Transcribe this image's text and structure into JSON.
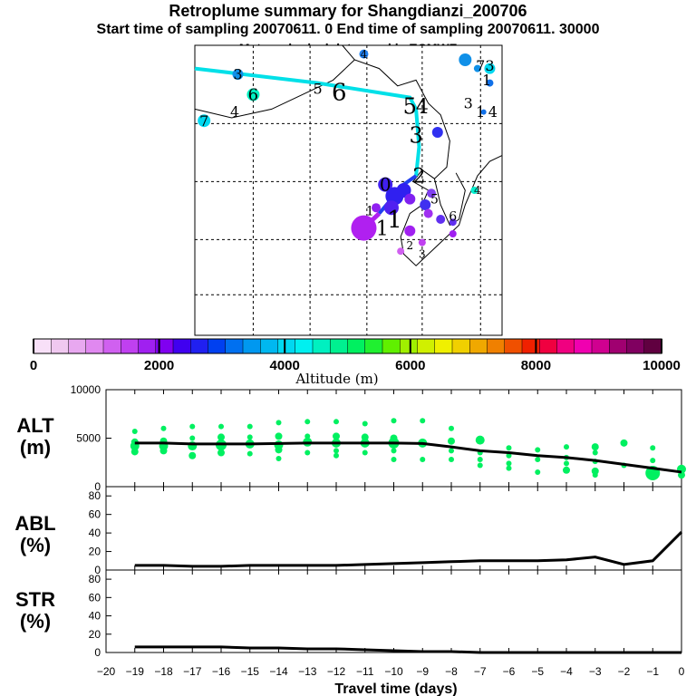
{
  "title": "Retroplume summary for Shangdianzi_200706",
  "subtitle": "Start time of sampling 20070611.    0     End time of sampling 20070611. 30000",
  "met_line": "Meteorological data used is ECMWF",
  "colorbar": {
    "label": "Altitude (m)",
    "ticks": [
      "0",
      "2000",
      "4000",
      "6000",
      "8000",
      "10000"
    ],
    "tick_values": [
      0,
      2000,
      4000,
      6000,
      8000,
      10000
    ],
    "colors": [
      "#f8e0f8",
      "#f0c8f0",
      "#e8a8f0",
      "#e088f0",
      "#d060f0",
      "#c040f0",
      "#a020f0",
      "#8000f0",
      "#4000f0",
      "#2020f0",
      "#0040f0",
      "#0070f0",
      "#0098f0",
      "#00b8f0",
      "#00d8f0",
      "#00f0f0",
      "#00f0c0",
      "#00f090",
      "#00f060",
      "#20f030",
      "#60f000",
      "#a0f000",
      "#d0f000",
      "#f0f000",
      "#f0d000",
      "#f0a800",
      "#f08000",
      "#f05000",
      "#f02000",
      "#f00040",
      "#f00080",
      "#f000b0",
      "#d00090",
      "#a00070",
      "#800060",
      "#600040"
    ]
  },
  "map": {
    "track_color": "#00e0e8",
    "labels": [
      {
        "text": "4",
        "mx": 0.55,
        "my": 0.03,
        "size": 12,
        "color": "#2080f0"
      },
      {
        "text": "5",
        "mx": 0.4,
        "my": 0.15,
        "size": 16,
        "color": "#00d0e8"
      },
      {
        "text": "6",
        "mx": 0.47,
        "my": 0.16,
        "size": 26,
        "color": "#00c8d8"
      },
      {
        "text": "5",
        "mx": 0.7,
        "my": 0.21,
        "size": 24,
        "color": "#1090e8"
      },
      {
        "text": "4",
        "mx": 0.74,
        "my": 0.21,
        "size": 22,
        "color": "#1090e8"
      },
      {
        "text": "3",
        "mx": 0.72,
        "my": 0.31,
        "size": 24,
        "color": "#1090e8"
      },
      {
        "text": "2",
        "mx": 0.73,
        "my": 0.45,
        "size": 22,
        "color": "#3040f0"
      },
      {
        "text": "0",
        "mx": 0.62,
        "my": 0.48,
        "size": 20,
        "color": "#6020f0"
      },
      {
        "text": "1",
        "mx": 0.65,
        "my": 0.6,
        "size": 26,
        "color": "#a020f0"
      },
      {
        "text": "1",
        "mx": 0.61,
        "my": 0.63,
        "size": 22,
        "color": "#b030f0"
      },
      {
        "text": "1",
        "mx": 0.57,
        "my": 0.57,
        "size": 14,
        "color": "#b030f0"
      },
      {
        "text": "5",
        "mx": 0.78,
        "my": 0.53,
        "size": 14,
        "color": "#6030f0"
      },
      {
        "text": "6",
        "mx": 0.84,
        "my": 0.59,
        "size": 14,
        "color": "#6030f0"
      },
      {
        "text": "2",
        "mx": 0.7,
        "my": 0.69,
        "size": 12,
        "color": "#a020f0"
      },
      {
        "text": "3",
        "mx": 0.74,
        "my": 0.72,
        "size": 12,
        "color": "#a020f0"
      },
      {
        "text": "4",
        "mx": 0.92,
        "my": 0.5,
        "size": 12,
        "color": "#00f0f0"
      },
      {
        "text": "7",
        "mx": 0.93,
        "my": 0.07,
        "size": 16,
        "color": "#1090e8"
      },
      {
        "text": "3",
        "mx": 0.96,
        "my": 0.07,
        "size": 16,
        "color": "#00d8f0"
      },
      {
        "text": "1",
        "mx": 0.95,
        "my": 0.12,
        "size": 16,
        "color": "#1070e8"
      },
      {
        "text": "3",
        "mx": 0.89,
        "my": 0.2,
        "size": 16,
        "color": "#1070e8"
      },
      {
        "text": "1",
        "mx": 0.93,
        "my": 0.23,
        "size": 16,
        "color": "#1070e8"
      },
      {
        "text": "4",
        "mx": 0.97,
        "my": 0.23,
        "size": 16,
        "color": "#1070e8"
      },
      {
        "text": "3",
        "mx": 0.14,
        "my": 0.1,
        "size": 16,
        "color": "#1090e8"
      },
      {
        "text": "6",
        "mx": 0.19,
        "my": 0.17,
        "size": 18,
        "color": "#00f0c0"
      },
      {
        "text": "4",
        "mx": 0.13,
        "my": 0.23,
        "size": 16,
        "color": "#00c8d8"
      },
      {
        "text": "7",
        "mx": 0.03,
        "my": 0.26,
        "size": 16,
        "color": "#00d8f0"
      }
    ],
    "dots": [
      {
        "mx": 0.55,
        "my": 0.03,
        "r": 5,
        "color": "#2080f0"
      },
      {
        "mx": 0.88,
        "my": 0.05,
        "r": 7,
        "color": "#1090e8"
      },
      {
        "mx": 0.92,
        "my": 0.08,
        "r": 4,
        "color": "#1090e8"
      },
      {
        "mx": 0.96,
        "my": 0.08,
        "r": 6,
        "color": "#00d8f0"
      },
      {
        "mx": 0.96,
        "my": 0.13,
        "r": 4,
        "color": "#1070e8"
      },
      {
        "mx": 0.94,
        "my": 0.23,
        "r": 3,
        "color": "#1070e8"
      },
      {
        "mx": 0.14,
        "my": 0.1,
        "r": 6,
        "color": "#1090e8"
      },
      {
        "mx": 0.19,
        "my": 0.17,
        "r": 7,
        "color": "#00f0c0"
      },
      {
        "mx": 0.03,
        "my": 0.26,
        "r": 7,
        "color": "#00d8f0"
      },
      {
        "mx": 0.79,
        "my": 0.3,
        "r": 6,
        "color": "#3030f0"
      },
      {
        "mx": 0.62,
        "my": 0.48,
        "r": 8,
        "color": "#4020f0"
      },
      {
        "mx": 0.65,
        "my": 0.52,
        "r": 10,
        "color": "#3020f0"
      },
      {
        "mx": 0.68,
        "my": 0.5,
        "r": 8,
        "color": "#3020f0"
      },
      {
        "mx": 0.64,
        "my": 0.56,
        "r": 8,
        "color": "#5020f0"
      },
      {
        "mx": 0.7,
        "my": 0.53,
        "r": 6,
        "color": "#8020f0"
      },
      {
        "mx": 0.75,
        "my": 0.55,
        "r": 6,
        "color": "#4030f0"
      },
      {
        "mx": 0.77,
        "my": 0.51,
        "r": 5,
        "color": "#8040f0"
      },
      {
        "mx": 0.76,
        "my": 0.58,
        "r": 5,
        "color": "#a030f0"
      },
      {
        "mx": 0.8,
        "my": 0.6,
        "r": 5,
        "color": "#6030f0"
      },
      {
        "mx": 0.84,
        "my": 0.61,
        "r": 4,
        "color": "#6030f0"
      },
      {
        "mx": 0.84,
        "my": 0.65,
        "r": 4,
        "color": "#a020f0"
      },
      {
        "mx": 0.7,
        "my": 0.64,
        "r": 6,
        "color": "#a020f0"
      },
      {
        "mx": 0.74,
        "my": 0.68,
        "r": 4,
        "color": "#c040f0"
      },
      {
        "mx": 0.67,
        "my": 0.71,
        "r": 4,
        "color": "#d060f0"
      },
      {
        "mx": 0.59,
        "my": 0.56,
        "r": 5,
        "color": "#9020f0"
      },
      {
        "mx": 0.55,
        "my": 0.63,
        "r": 14,
        "color": "#b020f0"
      },
      {
        "mx": 0.91,
        "my": 0.5,
        "r": 4,
        "color": "#00f0d0"
      }
    ]
  },
  "chart_data": [
    {
      "type": "line",
      "panel": "ALT",
      "ylabel": "ALT\n(m)",
      "ylabel_line1": "ALT",
      "ylabel_line2": "(m)",
      "xlabel": "Travel time (days)",
      "xlim": [
        -20,
        0
      ],
      "ylim": [
        0,
        10000
      ],
      "yticks": [
        0,
        5000,
        10000
      ],
      "x": [
        -19,
        -18,
        -17,
        -16,
        -15,
        -14,
        -13,
        -12,
        -11,
        -10,
        -9,
        -8,
        -7,
        -6,
        -5,
        -4,
        -3,
        -2,
        -1,
        0
      ],
      "mean_line": [
        4500,
        4500,
        4400,
        4400,
        4400,
        4450,
        4500,
        4500,
        4500,
        4500,
        4450,
        4100,
        3700,
        3500,
        3200,
        3000,
        2700,
        2300,
        1900,
        1500
      ],
      "scatter_color": "#00f060",
      "scatter": [
        {
          "x": -19,
          "ys": [
            5700,
            4600,
            4200,
            3600
          ],
          "sizes": [
            3,
            4,
            5,
            4
          ]
        },
        {
          "x": -18,
          "ys": [
            6000,
            4700,
            4200,
            3700
          ],
          "sizes": [
            3,
            4,
            5,
            4
          ]
        },
        {
          "x": -17,
          "ys": [
            6200,
            5000,
            4200,
            3200
          ],
          "sizes": [
            3,
            3,
            5,
            4
          ]
        },
        {
          "x": -16,
          "ys": [
            6200,
            5100,
            4300,
            3500
          ],
          "sizes": [
            3,
            4,
            6,
            4
          ]
        },
        {
          "x": -15,
          "ys": [
            6200,
            5100,
            4400,
            3400
          ],
          "sizes": [
            3,
            3,
            5,
            3
          ]
        },
        {
          "x": -14,
          "ys": [
            6600,
            5200,
            4300,
            3800,
            2900
          ],
          "sizes": [
            3,
            4,
            5,
            4,
            3
          ]
        },
        {
          "x": -13,
          "ys": [
            6700,
            5200,
            4600,
            3500
          ],
          "sizes": [
            3,
            3,
            5,
            3
          ]
        },
        {
          "x": -12,
          "ys": [
            6700,
            5200,
            4500,
            3700,
            3200
          ],
          "sizes": [
            3,
            4,
            5,
            3,
            3
          ]
        },
        {
          "x": -11,
          "ys": [
            6500,
            5100,
            4500,
            3500
          ],
          "sizes": [
            3,
            4,
            5,
            3
          ]
        },
        {
          "x": -10,
          "ys": [
            6800,
            5000,
            4500,
            3700,
            2800
          ],
          "sizes": [
            3,
            4,
            6,
            3,
            3
          ]
        },
        {
          "x": -9,
          "ys": [
            6800,
            4500,
            2800
          ],
          "sizes": [
            3,
            5,
            3
          ]
        },
        {
          "x": -8,
          "ys": [
            6000,
            4700,
            3700,
            2800
          ],
          "sizes": [
            3,
            4,
            3,
            3
          ]
        },
        {
          "x": -7,
          "ys": [
            4800,
            3500,
            2800,
            2200
          ],
          "sizes": [
            5,
            3,
            3,
            3
          ]
        },
        {
          "x": -6,
          "ys": [
            4000,
            3200,
            2400,
            1900
          ],
          "sizes": [
            3,
            3,
            3,
            3
          ]
        },
        {
          "x": -5,
          "ys": [
            3800,
            2800,
            1500
          ],
          "sizes": [
            3,
            3,
            3
          ]
        },
        {
          "x": -4,
          "ys": [
            4100,
            3000,
            2400,
            1700
          ],
          "sizes": [
            3,
            3,
            3,
            4
          ]
        },
        {
          "x": -3,
          "ys": [
            4100,
            3500,
            2600,
            1600,
            1200
          ],
          "sizes": [
            4,
            3,
            3,
            4,
            3
          ]
        },
        {
          "x": -2,
          "ys": [
            4500,
            2200
          ],
          "sizes": [
            4,
            3
          ]
        },
        {
          "x": -1,
          "ys": [
            4000,
            2700,
            1400
          ],
          "sizes": [
            3,
            3,
            8
          ]
        },
        {
          "x": 0,
          "ys": [
            1800,
            1200
          ],
          "sizes": [
            5,
            4
          ]
        }
      ]
    },
    {
      "type": "line",
      "panel": "ABL",
      "ylabel": "ABL\n(%)",
      "ylabel_line1": "ABL",
      "ylabel_line2": "(%)",
      "xlim": [
        -20,
        0
      ],
      "ylim": [
        0,
        90
      ],
      "yticks": [
        0,
        20,
        40,
        60,
        80
      ],
      "x": [
        -19,
        -18,
        -17,
        -16,
        -15,
        -14,
        -13,
        -12,
        -11,
        -10,
        -9,
        -8,
        -7,
        -6,
        -5,
        -4,
        -3,
        -2,
        -1,
        0
      ],
      "values": [
        5,
        5,
        4,
        4,
        5,
        5,
        5,
        5,
        6,
        7,
        8,
        9,
        10,
        10,
        10,
        11,
        14,
        6,
        10,
        41
      ]
    },
    {
      "type": "line",
      "panel": "STR",
      "ylabel": "STR\n(%)",
      "ylabel_line1": "STR",
      "ylabel_line2": "(%)",
      "xlim": [
        -20,
        0
      ],
      "ylim": [
        0,
        90
      ],
      "yticks": [
        0,
        20,
        40,
        60,
        80
      ],
      "x": [
        -19,
        -18,
        -17,
        -16,
        -15,
        -14,
        -13,
        -12,
        -11,
        -10,
        -9,
        -8,
        -7,
        -6,
        -5,
        -4,
        -3,
        -2,
        -1,
        0
      ],
      "values": [
        6,
        6,
        6,
        6,
        5,
        5,
        4,
        4,
        3,
        2,
        1,
        1,
        0,
        0,
        0,
        0,
        0,
        0,
        0,
        0
      ]
    }
  ],
  "xaxis": {
    "ticks": [
      -20,
      -19,
      -18,
      -17,
      -16,
      -15,
      -14,
      -13,
      -12,
      -11,
      -10,
      -9,
      -8,
      -7,
      -6,
      -5,
      -4,
      -3,
      -2,
      -1,
      0
    ],
    "tick_labels": [
      "−20",
      "−19",
      "−18",
      "−17",
      "−16",
      "−15",
      "−14",
      "−13",
      "−12",
      "−11",
      "−10",
      "−9",
      "−8",
      "−7",
      "−6",
      "−5",
      "−4",
      "−3",
      "−2",
      "−1",
      "0"
    ],
    "label": "Travel time (days)"
  }
}
